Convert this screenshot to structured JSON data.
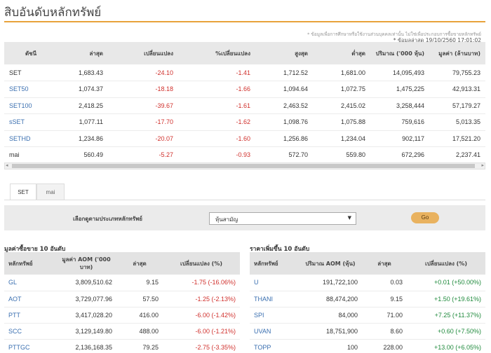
{
  "page": {
    "title": "สิบอันดับหลักทรัพย์",
    "note_disclaimer": "* ข้อมูลเพื่อการศึกษาหรือใช้งานส่วนบุคคลเท่านั้น ไม่ใช่เพื่อประกอบการซื้อขายหลักทรัพย์",
    "note_updated": "* ข้อมูลล่าสุด 19/10/2560 17:01:02"
  },
  "index_table": {
    "headers": [
      "ดัชนี",
      "ล่าสุด",
      "เปลี่ยนแปลง",
      "%เปลี่ยนแปลง",
      "สูงสุด",
      "ต่ำสุด",
      "ปริมาณ ('000 หุ้น)",
      "มูลค่า (ล้านบาท)"
    ],
    "rows": [
      {
        "name": "SET",
        "link": false,
        "last": "1,683.43",
        "change": "-24.10",
        "pct": "-1.41",
        "high": "1,712.52",
        "low": "1,681.00",
        "volume": "14,095,493",
        "value": "79,755.23"
      },
      {
        "name": "SET50",
        "link": true,
        "last": "1,074.37",
        "change": "-18.18",
        "pct": "-1.66",
        "high": "1,094.64",
        "low": "1,072.75",
        "volume": "1,475,225",
        "value": "42,913.31"
      },
      {
        "name": "SET100",
        "link": true,
        "last": "2,418.25",
        "change": "-39.67",
        "pct": "-1.61",
        "high": "2,463.52",
        "low": "2,415.02",
        "volume": "3,258,444",
        "value": "57,179.27"
      },
      {
        "name": "sSET",
        "link": true,
        "last": "1,077.11",
        "change": "-17.70",
        "pct": "-1.62",
        "high": "1,098.76",
        "low": "1,075.88",
        "volume": "759,616",
        "value": "5,013.35"
      },
      {
        "name": "SETHD",
        "link": true,
        "last": "1,234.86",
        "change": "-20.07",
        "pct": "-1.60",
        "high": "1,256.86",
        "low": "1,234.04",
        "volume": "902,117",
        "value": "17,521.20"
      },
      {
        "name": "mai",
        "link": false,
        "last": "560.49",
        "change": "-5.27",
        "pct": "-0.93",
        "high": "572.70",
        "low": "559.80",
        "volume": "672,296",
        "value": "2,237.41"
      }
    ]
  },
  "tabs": [
    {
      "label": "SET",
      "active": true
    },
    {
      "label": "mai",
      "active": false
    }
  ],
  "filter": {
    "label": "เลือกดูตามประเภทหลักทรัพย์",
    "selected": "หุ้นสามัญ",
    "go_label": "Go"
  },
  "top_value": {
    "title": "มูลค่าซื้อขาย 10 อันดับ",
    "headers": [
      "หลักทรัพย์",
      "มูลค่า AOM ('000 บาท)",
      "ล่าสุด",
      "เปลี่ยนแปลง (%)"
    ],
    "rows": [
      {
        "symbol": "GL",
        "value": "3,809,510.62",
        "last": "9.15",
        "change": "-1.75 (-16.06%)",
        "dir": "neg"
      },
      {
        "symbol": "AOT",
        "value": "3,729,077.96",
        "last": "57.50",
        "change": "-1.25 (-2.13%)",
        "dir": "neg"
      },
      {
        "symbol": "PTT",
        "value": "3,417,028.20",
        "last": "416.00",
        "change": "-6.00 (-1.42%)",
        "dir": "neg"
      },
      {
        "symbol": "SCC",
        "value": "3,129,149.80",
        "last": "488.00",
        "change": "-6.00 (-1.21%)",
        "dir": "neg"
      },
      {
        "symbol": "PTTGC",
        "value": "2,136,168.35",
        "last": "79.25",
        "change": "-2.75 (-3.35%)",
        "dir": "neg"
      }
    ]
  },
  "top_gainers": {
    "title": "ราคาเพิ่มขึ้น 10 อันดับ",
    "headers": [
      "หลักทรัพย์",
      "ปริมาณ AOM (หุ้น)",
      "ล่าสุด",
      "เปลี่ยนแปลง (%)"
    ],
    "rows": [
      {
        "symbol": "U",
        "volume": "191,722,100",
        "last": "0.03",
        "change": "+0.01 (+50.00%)",
        "dir": "pos"
      },
      {
        "symbol": "THANI",
        "volume": "88,474,200",
        "last": "9.15",
        "change": "+1.50 (+19.61%)",
        "dir": "pos"
      },
      {
        "symbol": "SPI",
        "volume": "84,000",
        "last": "71.00",
        "change": "+7.25 (+11.37%)",
        "dir": "pos"
      },
      {
        "symbol": "UVAN",
        "volume": "18,751,900",
        "last": "8.60",
        "change": "+0.60 (+7.50%)",
        "dir": "pos"
      },
      {
        "symbol": "TOPP",
        "volume": "100",
        "last": "228.00",
        "change": "+13.00 (+6.05%)",
        "dir": "pos"
      }
    ]
  }
}
